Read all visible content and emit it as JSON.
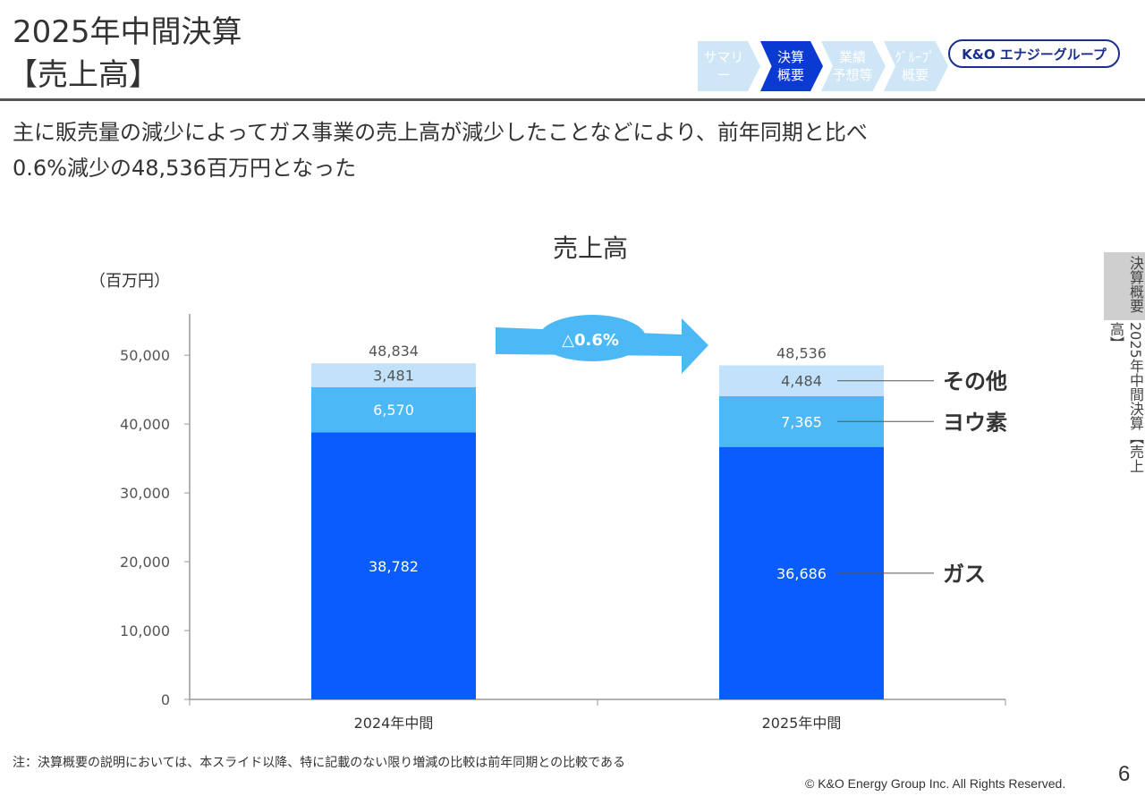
{
  "header": {
    "title_line1": "2025年中間決算",
    "title_line2": "【売上高】"
  },
  "nav": {
    "steps": [
      {
        "label": "サマリー",
        "active": false
      },
      {
        "label": "決算\n概要",
        "active": true
      },
      {
        "label": "業績\n予想等",
        "active": false
      },
      {
        "label": "ｸﾞﾙｰﾌﾟ\n概要",
        "active": false
      }
    ]
  },
  "logo": {
    "text": "K&O エナジーグループ"
  },
  "subtitle": "主に販売量の減少によってガス事業の売上高が減少したことなどにより、前年同期と比べ\n0.6%減少の48,536百万円となった",
  "side": {
    "section_tab": "決算概要",
    "running_title": "2025年中間決算【売上高】"
  },
  "colors": {
    "gas": "#0b5cff",
    "iodine": "#4cb9f6",
    "other": "#c2e2fb",
    "arrow": "#4cb9f6",
    "accent_dark": "#0a3ad1"
  },
  "chart_data": {
    "type": "bar",
    "stacked": true,
    "title": "売上高",
    "unit_label": "（百万円）",
    "categories": [
      "2024年中間",
      "2025年中間"
    ],
    "series": [
      {
        "name": "ガス",
        "values": [
          38782,
          36686
        ],
        "labels": [
          "38,782",
          "36,686"
        ]
      },
      {
        "name": "ヨウ素",
        "values": [
          6570,
          7365
        ],
        "labels": [
          "6,570",
          "7,365"
        ]
      },
      {
        "name": "その他",
        "values": [
          3481,
          4484
        ],
        "labels": [
          "3,481",
          "4,484"
        ]
      }
    ],
    "totals": [
      48834,
      48536
    ],
    "total_labels": [
      "48,834",
      "48,536"
    ],
    "ylim": [
      0,
      56000
    ],
    "yticks": [
      0,
      10000,
      20000,
      30000,
      40000,
      50000
    ],
    "ytick_labels": [
      "0",
      "10,000",
      "20,000",
      "30,000",
      "40,000",
      "50,000"
    ],
    "change_label": "△0.6%",
    "legend_position": "right"
  },
  "footer": {
    "note": "注：決算概要の説明においては、本スライド以降、特に記載のない限り増減の比較は前年同期との比較である",
    "copyright": "© K&O Energy Group Inc. All Rights Reserved.",
    "page_number": "6"
  }
}
